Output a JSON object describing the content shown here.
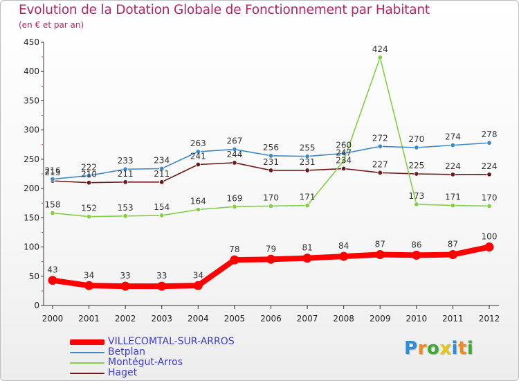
{
  "header": {
    "title": "Evolution de la Dotation Globale de Fonctionnement par Habitant",
    "subtitle": "(en € et par an)"
  },
  "chart_data": {
    "type": "line",
    "title": "Evolution de la Dotation Globale de Fonctionnement par Habitant",
    "subtitle": "(en € et par an)",
    "xlabel": "",
    "ylabel": "",
    "ylim": [
      0,
      450
    ],
    "yticks": [
      0,
      50,
      100,
      150,
      200,
      250,
      300,
      350,
      400,
      450
    ],
    "grid": false,
    "x": [
      "2000",
      "2001",
      "2002",
      "2003",
      "2004",
      "2005",
      "2006",
      "2007",
      "2008",
      "2009",
      "2010",
      "2011",
      "2012"
    ],
    "series": [
      {
        "name": "VILLECOMTAL-SUR-ARROS",
        "color": "#ff0000",
        "values": [
          43,
          34,
          33,
          33,
          34,
          78,
          79,
          81,
          84,
          87,
          86,
          87,
          100
        ]
      },
      {
        "name": "Betplan",
        "color": "#3d88c6",
        "values": [
          216,
          222,
          233,
          234,
          263,
          267,
          256,
          255,
          260,
          272,
          270,
          274,
          278
        ]
      },
      {
        "name": "Montégut-Arros",
        "color": "#80d040",
        "values": [
          158,
          152,
          153,
          154,
          164,
          169,
          170,
          171,
          247,
          424,
          173,
          171,
          170
        ]
      },
      {
        "name": "Haget",
        "color": "#6b1a1a",
        "values": [
          213,
          210,
          211,
          211,
          241,
          244,
          231,
          231,
          234,
          227,
          225,
          224,
          224
        ]
      }
    ]
  },
  "logo": {
    "letters": [
      "P",
      "r",
      "o",
      "x",
      "i",
      "t",
      "i"
    ],
    "colors": [
      "#2a8fd6",
      "#f08a1c",
      "#3aaa35",
      "#e8c51a",
      "#2a8fd6",
      "#f08a1c",
      "#3aaa35"
    ]
  }
}
